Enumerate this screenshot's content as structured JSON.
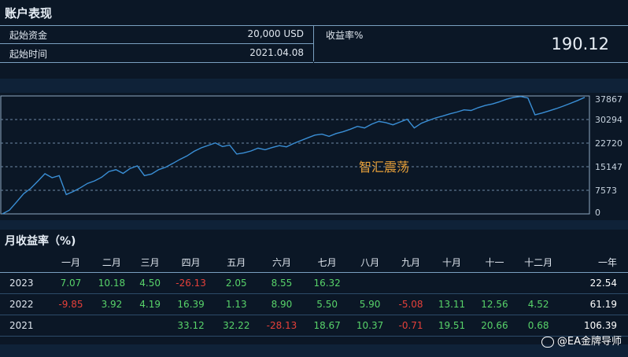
{
  "header": {
    "title": "账户表现"
  },
  "summary": {
    "initial_capital_label": "起始资金",
    "initial_capital_value": "20,000 USD",
    "start_time_label": "起始时间",
    "start_time_value": "2021.04.08",
    "return_label": "收益率%",
    "return_value": "190.12"
  },
  "chart_data": {
    "type": "line",
    "title": "智汇震荡",
    "xlabel": "",
    "ylabel": "",
    "ylim": [
      0,
      37867
    ],
    "yticks": [
      "37867",
      "30294",
      "22720",
      "15147",
      "7573",
      "0"
    ],
    "grid": "horizontal dashed",
    "y_axis_side": "right",
    "line_color": "#3a8fd6",
    "series": [
      {
        "values": [
          0,
          1200,
          3800,
          6500,
          8200,
          10500,
          12900,
          11600,
          12300,
          6200,
          7200,
          8400,
          9800,
          10600,
          11800,
          13600,
          14200,
          13000,
          14600,
          15400,
          12300,
          12800,
          14200,
          15000,
          16200,
          17500,
          18600,
          20100,
          21200,
          22000,
          22800,
          21600,
          22100,
          19200,
          19600,
          20200,
          21100,
          20600,
          21300,
          21900,
          21500,
          22600,
          23500,
          24400,
          25300,
          25600,
          24900,
          25800,
          26400,
          27200,
          28100,
          27600,
          28800,
          29700,
          29300,
          28600,
          29500,
          30400,
          27600,
          29100,
          30000,
          30800,
          31400,
          32100,
          32700,
          33400,
          33200,
          34100,
          34800,
          35300,
          36000,
          36800,
          37400,
          37700,
          37200,
          31800,
          32400,
          33100,
          33800,
          34600,
          35500,
          36400,
          37400
        ]
      }
    ]
  },
  "monthly": {
    "title": "月收益率（%)",
    "columns": [
      "",
      "一月",
      "二月",
      "三月",
      "四月",
      "五月",
      "六月",
      "七月",
      "八月",
      "九月",
      "十月",
      "十一",
      "十二月",
      "一年"
    ],
    "rows": [
      {
        "year": "2023",
        "cells": [
          "7.07",
          "10.18",
          "4.50",
          "-26.13",
          "2.05",
          "8.55",
          "16.32",
          "",
          "",
          "",
          "",
          ""
        ],
        "total": "22.54"
      },
      {
        "year": "2022",
        "cells": [
          "-9.85",
          "3.92",
          "4.19",
          "16.39",
          "1.13",
          "8.90",
          "5.50",
          "5.90",
          "-5.08",
          "13.11",
          "12.56",
          "4.52"
        ],
        "total": "61.19"
      },
      {
        "year": "2021",
        "cells": [
          "",
          "",
          "",
          "33.12",
          "32.22",
          "-28.13",
          "18.67",
          "10.37",
          "-0.71",
          "19.51",
          "20.66",
          "0.68"
        ],
        "total": "106.39"
      }
    ]
  },
  "watermark": "@EA金牌导师",
  "colors": {
    "positive": "#58d36a",
    "negative": "#e5403a",
    "line": "#3a8fd6",
    "chart_title": "#e8a13a"
  }
}
